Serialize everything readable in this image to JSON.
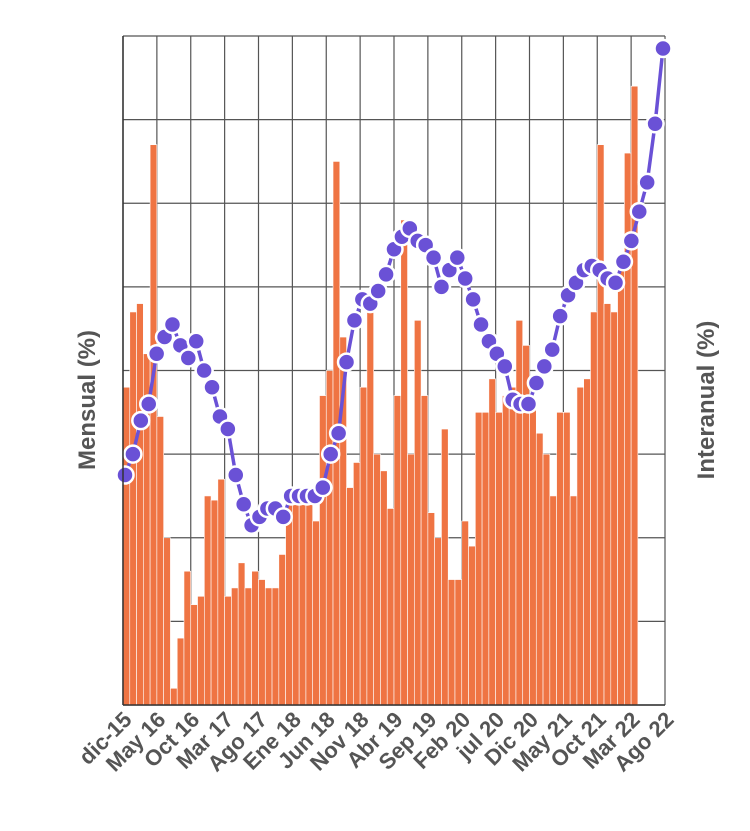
{
  "chart_data": {
    "type": "bar",
    "title": "",
    "ylabel_left": "Mensual (%)",
    "ylabel_right": "Interanual (%)",
    "xlim": [
      0,
      80
    ],
    "ylim_left": [
      0,
      8
    ],
    "ylim_right": [
      0,
      8
    ],
    "grid": true,
    "x_tick_labels": [
      "dic-15",
      "May 16",
      "Oct 16",
      "Mar 17",
      "Ago 17",
      "Ene 18",
      "Jun 18",
      "Nov 18",
      "Abr 19",
      "Sep 19",
      "Feb 20",
      "jul 20",
      "Dic 20",
      "May 21",
      "Oct 21",
      "Mar 22",
      "Ago 22"
    ],
    "x_tick_index": [
      0,
      5,
      10,
      15,
      20,
      25,
      30,
      35,
      40,
      45,
      50,
      55,
      60,
      65,
      70,
      75,
      80
    ],
    "colors": {
      "bars": "#ef7443",
      "line": "#6a51d6",
      "marker_edge": "#ffffff"
    },
    "series": [
      {
        "kind": "bar",
        "axis": "left",
        "values": [
          3.8,
          4.7,
          4.8,
          4.2,
          6.7,
          3.45,
          2.0,
          0.2,
          0.8,
          1.6,
          1.2,
          1.3,
          2.5,
          2.45,
          2.7,
          1.3,
          1.4,
          1.7,
          1.4,
          1.6,
          1.5,
          1.4,
          1.4,
          1.8,
          2.5,
          2.4,
          2.4,
          2.4,
          2.2,
          3.7,
          4.0,
          6.5,
          4.4,
          2.6,
          2.9,
          3.8,
          4.7,
          3.0,
          2.8,
          2.35,
          3.7,
          5.8,
          3.0,
          4.6,
          3.7,
          2.3,
          2.0,
          3.3,
          1.5,
          1.5,
          2.2,
          1.9,
          3.5,
          3.5,
          3.9,
          3.5,
          3.7,
          3.8,
          4.6,
          4.3,
          3.6,
          3.25,
          3.0,
          2.5,
          3.5,
          3.5,
          2.5,
          3.8,
          3.9,
          4.7,
          6.7,
          4.8,
          4.7,
          5.2,
          6.6,
          7.4
        ],
        "name": ""
      },
      {
        "kind": "line",
        "axis": "right",
        "values": [
          2.75,
          3.0,
          3.4,
          3.6,
          4.2,
          4.4,
          4.55,
          4.3,
          4.15,
          4.35,
          4.0,
          3.8,
          3.45,
          3.3,
          2.75,
          2.4,
          2.15,
          2.25,
          2.35,
          2.35,
          2.25,
          2.5,
          2.5,
          2.5,
          2.5,
          2.6,
          3.0,
          3.25,
          4.1,
          4.6,
          4.85,
          4.8,
          4.95,
          5.15,
          5.45,
          5.6,
          5.7,
          5.55,
          5.5,
          5.35,
          5.0,
          5.2,
          5.35,
          5.1,
          4.85,
          4.55,
          4.35,
          4.2,
          4.05,
          3.65,
          3.6,
          3.6,
          3.85,
          4.05,
          4.25,
          4.65,
          4.9,
          5.05,
          5.2,
          5.25,
          5.2,
          5.1,
          5.05,
          5.3,
          5.55,
          5.9,
          6.25,
          6.95,
          7.85
        ]
      }
    ]
  }
}
